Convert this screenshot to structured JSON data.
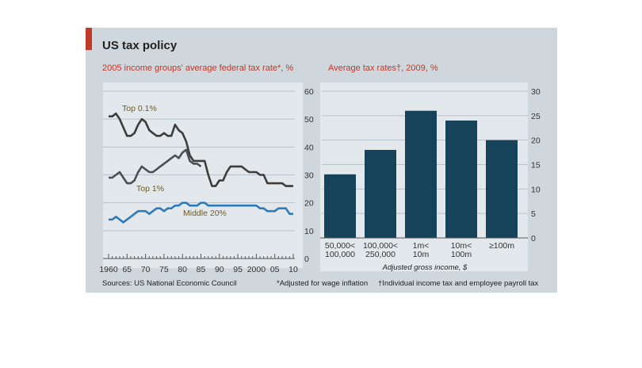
{
  "figure": {
    "title": "US tax policy",
    "source": "Sources: US National Economic Council",
    "footnote_1": "*Adjusted for wage inflation",
    "footnote_2": "†Individual income tax and employee payroll tax",
    "colors": {
      "background": "#cfd6dc",
      "plot_background": "#e3e8ec",
      "accent_red": "#c0392b",
      "bar_fill": "#17435a",
      "line_top01": "#3d3d3d",
      "line_top1": "#4a4f55",
      "line_middle": "#2e7bb8"
    }
  },
  "chart_data": [
    {
      "type": "line",
      "title": "2005 income groups' average federal tax rate*, %",
      "x_tick_labels": [
        "1960",
        "65",
        "70",
        "75",
        "80",
        "85",
        "90",
        "95",
        "2000",
        "05",
        "10"
      ],
      "x_ticks": [
        1960,
        1965,
        1970,
        1975,
        1980,
        1985,
        1990,
        1995,
        2000,
        2005,
        2010
      ],
      "xlim": [
        1960,
        2010
      ],
      "y_ticks": [
        0,
        10,
        20,
        30,
        40,
        50,
        60
      ],
      "ylim": [
        0,
        60
      ],
      "grid": true,
      "series": [
        {
          "name": "Top 0.1%",
          "x": [
            1960,
            1961,
            1962,
            1963,
            1964,
            1965,
            1966,
            1967,
            1968,
            1969,
            1970,
            1971,
            1972,
            1973,
            1974,
            1975,
            1976,
            1977,
            1978,
            1979,
            1980,
            1981,
            1982,
            1983,
            1984,
            1985,
            1986,
            1987,
            1988,
            1989,
            1990,
            1991,
            1992,
            1993,
            1994,
            1995,
            1996,
            1997,
            1998,
            1999,
            2000,
            2001,
            2002,
            2003,
            2004,
            2005,
            2006,
            2007,
            2008,
            2009,
            2010
          ],
          "values": [
            51,
            51,
            52,
            50,
            47,
            44,
            44,
            45,
            48,
            50,
            49,
            46,
            45,
            44,
            44,
            45,
            44,
            44,
            48,
            46,
            45,
            42,
            37,
            35,
            35,
            35,
            35,
            30,
            26,
            26,
            28,
            28,
            31,
            33,
            33,
            33,
            33,
            32,
            31,
            31,
            31,
            30,
            30,
            27,
            27,
            27,
            27,
            27,
            26,
            26,
            26
          ]
        },
        {
          "name": "Top 1%",
          "x": [
            1960,
            1961,
            1962,
            1963,
            1964,
            1965,
            1966,
            1967,
            1968,
            1969,
            1970,
            1971,
            1972,
            1973,
            1974,
            1975,
            1976,
            1977,
            1978,
            1979,
            1980,
            1981,
            1982,
            1983,
            1984,
            1985
          ],
          "values": [
            29,
            29,
            30,
            31,
            29,
            27,
            27,
            28,
            31,
            33,
            32,
            31,
            31,
            32,
            33,
            34,
            35,
            36,
            37,
            36,
            38,
            39,
            35,
            34,
            34,
            33
          ]
        },
        {
          "name": "Middle 20%",
          "x": [
            1960,
            1961,
            1962,
            1963,
            1964,
            1965,
            1966,
            1967,
            1968,
            1969,
            1970,
            1971,
            1972,
            1973,
            1974,
            1975,
            1976,
            1977,
            1978,
            1979,
            1980,
            1981,
            1982,
            1983,
            1984,
            1985,
            1986,
            1987,
            1988,
            1989,
            1990,
            1991,
            1992,
            1993,
            1994,
            1995,
            1996,
            1997,
            1998,
            1999,
            2000,
            2001,
            2002,
            2003,
            2004,
            2005,
            2006,
            2007,
            2008,
            2009,
            2010
          ],
          "values": [
            14,
            14,
            15,
            14,
            13,
            14,
            15,
            16,
            17,
            17,
            17,
            16,
            17,
            18,
            18,
            17,
            18,
            18,
            19,
            19,
            20,
            20,
            19,
            19,
            19,
            20,
            20,
            19,
            19,
            19,
            19,
            19,
            19,
            19,
            19,
            19,
            19,
            19,
            19,
            19,
            19,
            18,
            18,
            17,
            17,
            17,
            18,
            18,
            18,
            16,
            16
          ]
        }
      ]
    },
    {
      "type": "bar",
      "title": "Average tax rates†, 2009, %",
      "xlabel": "Adjusted gross income, $",
      "categories": [
        [
          "50,000<",
          "100,000"
        ],
        [
          "100,000<",
          "250,000"
        ],
        [
          "1m<",
          "10m"
        ],
        [
          "10m<",
          "100m"
        ],
        [
          "≥100m"
        ]
      ],
      "values": [
        13,
        18,
        26,
        24,
        20
      ],
      "y_ticks": [
        0,
        5,
        10,
        15,
        20,
        25,
        30
      ],
      "ylim": [
        0,
        30
      ],
      "grid": true
    }
  ]
}
